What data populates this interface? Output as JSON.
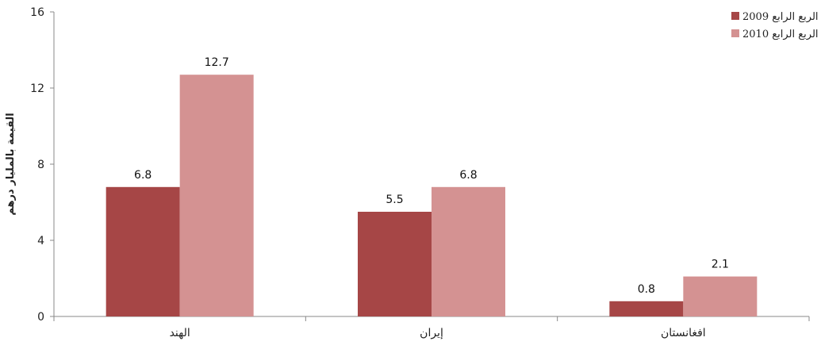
{
  "chart_data": {
    "type": "bar",
    "ylabel": "القيمة بالمليار درهم",
    "ylim": [
      0,
      16
    ],
    "yticks": [
      0,
      4,
      8,
      12,
      16
    ],
    "grid": false,
    "legend_position": "top-right",
    "categories": [
      "الهند",
      "إيران",
      "افغانستان"
    ],
    "series": [
      {
        "name": "الربع الرابع 2009",
        "color": "#a64646",
        "values": [
          6.8,
          5.5,
          0.8
        ]
      },
      {
        "name": "الربع الرابع 2010",
        "color": "#d49292",
        "values": [
          12.7,
          6.8,
          2.1
        ]
      }
    ]
  }
}
